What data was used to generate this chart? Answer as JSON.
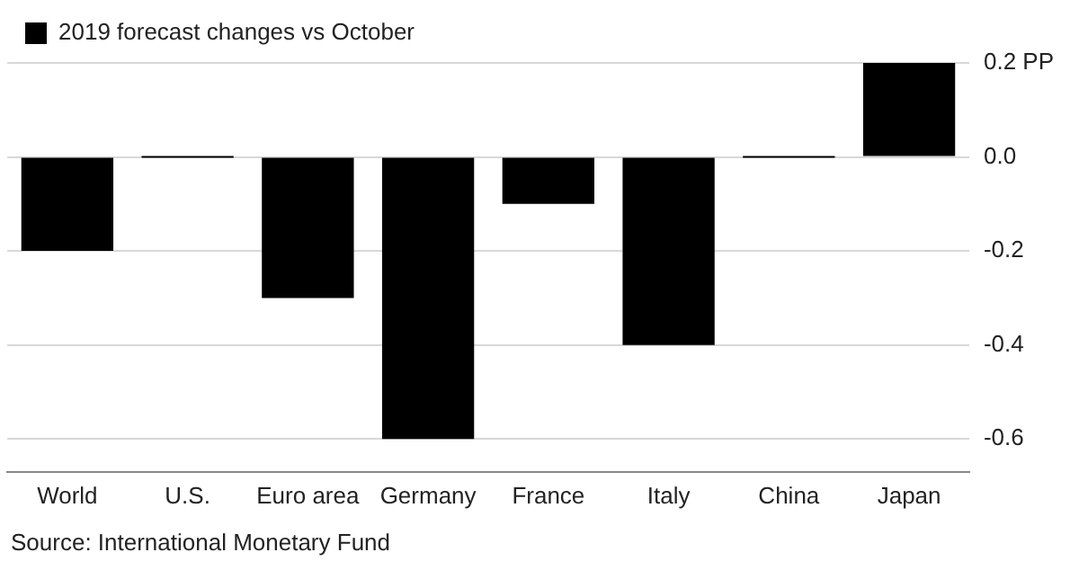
{
  "chart_data": {
    "type": "bar",
    "categories": [
      "World",
      "U.S.",
      "Euro area",
      "Germany",
      "France",
      "Italy",
      "China",
      "Japan"
    ],
    "series": [
      {
        "name": "2019 forecast changes vs October",
        "color": "#000000",
        "values": [
          -0.2,
          0,
          -0.3,
          -0.6,
          -0.1,
          -0.4,
          0,
          0.2
        ]
      }
    ],
    "ylim": [
      -0.67,
      0.2
    ],
    "yticks": [
      {
        "value": 0.2,
        "label": "0.2 PP"
      },
      {
        "value": 0,
        "label": "0.0"
      },
      -0.2,
      -0.4,
      -0.6
    ],
    "grid": "y",
    "legend": "top left",
    "annotations": [
      "Source: International Monetary Fund"
    ]
  }
}
